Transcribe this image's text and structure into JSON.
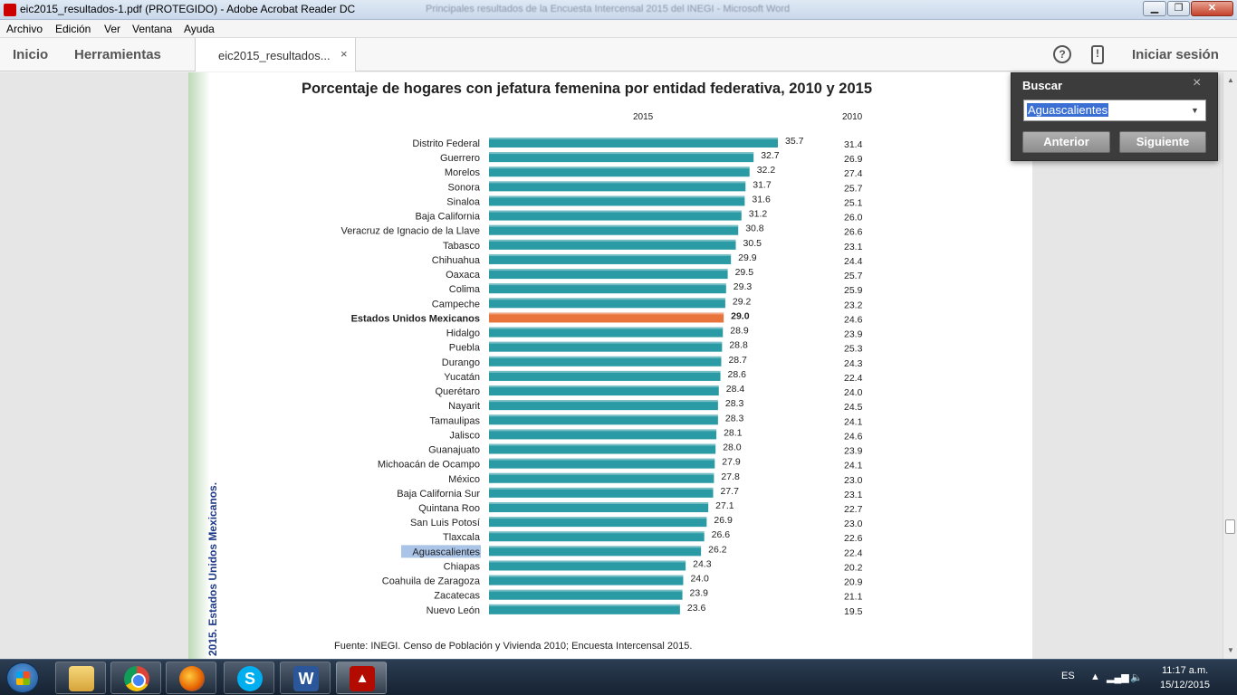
{
  "window": {
    "title": "eic2015_resultados-1.pdf (PROTEGIDO) - Adobe Acrobat Reader DC",
    "background_title": "Principales resultados de la Encuesta Intercensal 2015 del INEGI - Microsoft Word"
  },
  "menu": {
    "items": [
      "Archivo",
      "Edición",
      "Ver",
      "Ventana",
      "Ayuda"
    ]
  },
  "toolbar": {
    "home": "Inicio",
    "tools": "Herramientas",
    "doc_tab": "eic2015_resultados...",
    "close_tab": "×",
    "help": "?",
    "sign_in": "Iniciar sesión"
  },
  "find": {
    "title": "Buscar",
    "close": "×",
    "query": "Aguascalientes",
    "prev": "Anterior",
    "next": "Siguiente"
  },
  "page": {
    "side_text": "2015. Estados Unidos Mexicanos.",
    "source": "Fuente: INEGI. Censo de Población y Vivienda 2010; Encuesta Intercensal 2015."
  },
  "chart_data": {
    "type": "bar",
    "orientation": "horizontal",
    "title": "Porcentaje de hogares con jefatura femenina por entidad federativa, 2010 y 2015",
    "series_2015_label": "2015",
    "series_2010_label": "2010",
    "highlight_category": "Estados Unidos Mexicanos",
    "search_highlight": "Aguascalientes",
    "bar_color": "#2a9aa5",
    "highlight_color": "#e8743b",
    "categories": [
      "Distrito Federal",
      "Guerrero",
      "Morelos",
      "Sonora",
      "Sinaloa",
      "Baja California",
      "Veracruz de Ignacio de la Llave",
      "Tabasco",
      "Chihuahua",
      "Oaxaca",
      "Colima",
      "Campeche",
      "Estados Unidos Mexicanos",
      "Hidalgo",
      "Puebla",
      "Durango",
      "Yucatán",
      "Querétaro",
      "Nayarit",
      "Tamaulipas",
      "Jalisco",
      "Guanajuato",
      "Michoacán de Ocampo",
      "México",
      "Baja California Sur",
      "Quintana Roo",
      "San Luis Potosí",
      "Tlaxcala",
      "Aguascalientes",
      "Chiapas",
      "Coahuila de Zaragoza",
      "Zacatecas",
      "Nuevo León"
    ],
    "values_2015": [
      "35.7",
      "32.7",
      "32.2",
      "31.7",
      "31.6",
      "31.2",
      "30.8",
      "30.5",
      "29.9",
      "29.5",
      "29.3",
      "29.2",
      "29.0",
      "28.9",
      "28.8",
      "28.7",
      "28.6",
      "28.4",
      "28.3",
      "28.3",
      "28.1",
      "28.0",
      "27.9",
      "27.8",
      "27.7",
      "27.1",
      "26.9",
      "26.6",
      "26.2",
      "24.3",
      "24.0",
      "23.9",
      "23.6"
    ],
    "values_2010": [
      "31.4",
      "26.9",
      "27.4",
      "25.7",
      "25.1",
      "26.0",
      "26.6",
      "23.1",
      "24.4",
      "25.7",
      "25.9",
      "23.2",
      "24.6",
      "23.9",
      "25.3",
      "24.3",
      "22.4",
      "24.0",
      "24.5",
      "24.1",
      "24.6",
      "23.9",
      "24.1",
      "23.0",
      "23.1",
      "22.7",
      "23.0",
      "22.6",
      "22.4",
      "20.2",
      "20.9",
      "21.1",
      "19.5"
    ],
    "xlim": [
      0,
      35.7
    ]
  },
  "taskbar": {
    "apps": [
      "explorer",
      "chrome",
      "firefox",
      "skype",
      "word",
      "acrobat"
    ],
    "language": "ES",
    "time": "11:17 a.m.",
    "date": "15/12/2015"
  }
}
